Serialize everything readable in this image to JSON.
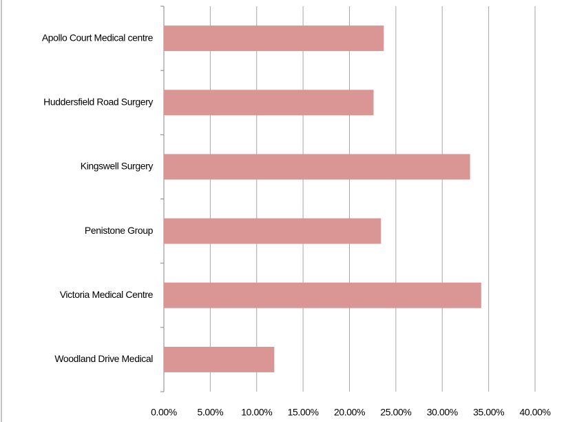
{
  "chart_data": {
    "type": "barh",
    "categories": [
      "Apollo Court Medical centre",
      "Huddersfield Road Surgery",
      "Kingswell Surgery",
      "Penistone Group",
      "Victoria Medical Centre",
      "Woodland Drive Medical"
    ],
    "values": [
      23.7,
      22.6,
      33.0,
      23.4,
      34.2,
      11.9
    ],
    "color": "#d99694",
    "xlim": [
      0,
      40
    ],
    "xticks": [
      {
        "value": 0,
        "label": "0.00%"
      },
      {
        "value": 5,
        "label": "5.00%"
      },
      {
        "value": 10,
        "label": "10.00%"
      },
      {
        "value": 15,
        "label": "15.00%"
      },
      {
        "value": 20,
        "label": "20.00%"
      },
      {
        "value": 25,
        "label": "25.00%"
      },
      {
        "value": 30,
        "label": "30.00%"
      },
      {
        "value": 35,
        "label": "35.00%"
      },
      {
        "value": 40,
        "label": "40.00%"
      }
    ],
    "grid": true
  }
}
